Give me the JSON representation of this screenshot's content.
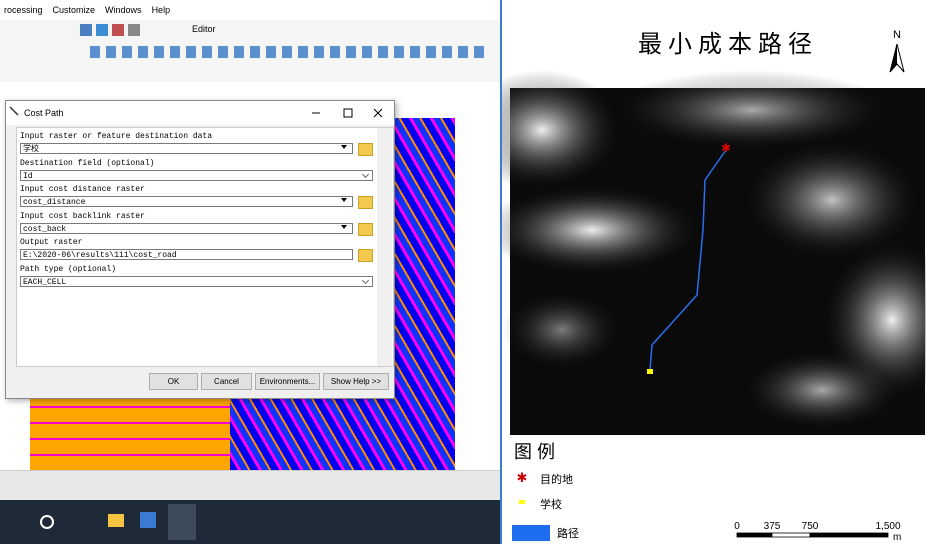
{
  "menu": [
    "rocessing",
    "Customize",
    "Windows",
    "Help"
  ],
  "toolbar": {
    "editor": "Editor"
  },
  "dialog": {
    "title": "Cost Path",
    "fields": [
      {
        "label": "Input raster or feature destination data",
        "value": "学校"
      },
      {
        "label": "Destination field (optional)",
        "value": "Id"
      },
      {
        "label": "Input cost distance raster",
        "value": "cost_distance"
      },
      {
        "label": "Input cost backlink raster",
        "value": "cost_back"
      },
      {
        "label": "Output raster",
        "value": "E:\\2020-06\\results\\111\\cost_road"
      },
      {
        "label": "Path type (optional)",
        "value": "EACH_CELL"
      }
    ],
    "buttons": [
      "OK",
      "Cancel",
      "Environments...",
      "Show Help >>"
    ]
  },
  "layout": {
    "title": "最 小 成 本 路 径",
    "north": "N",
    "legend": {
      "title": "图 例",
      "items": [
        "目的地",
        "学校",
        "路径"
      ]
    },
    "scale_bar": {
      "labels": [
        "0",
        "375",
        "750",
        "1,500"
      ],
      "unit": "m"
    }
  }
}
